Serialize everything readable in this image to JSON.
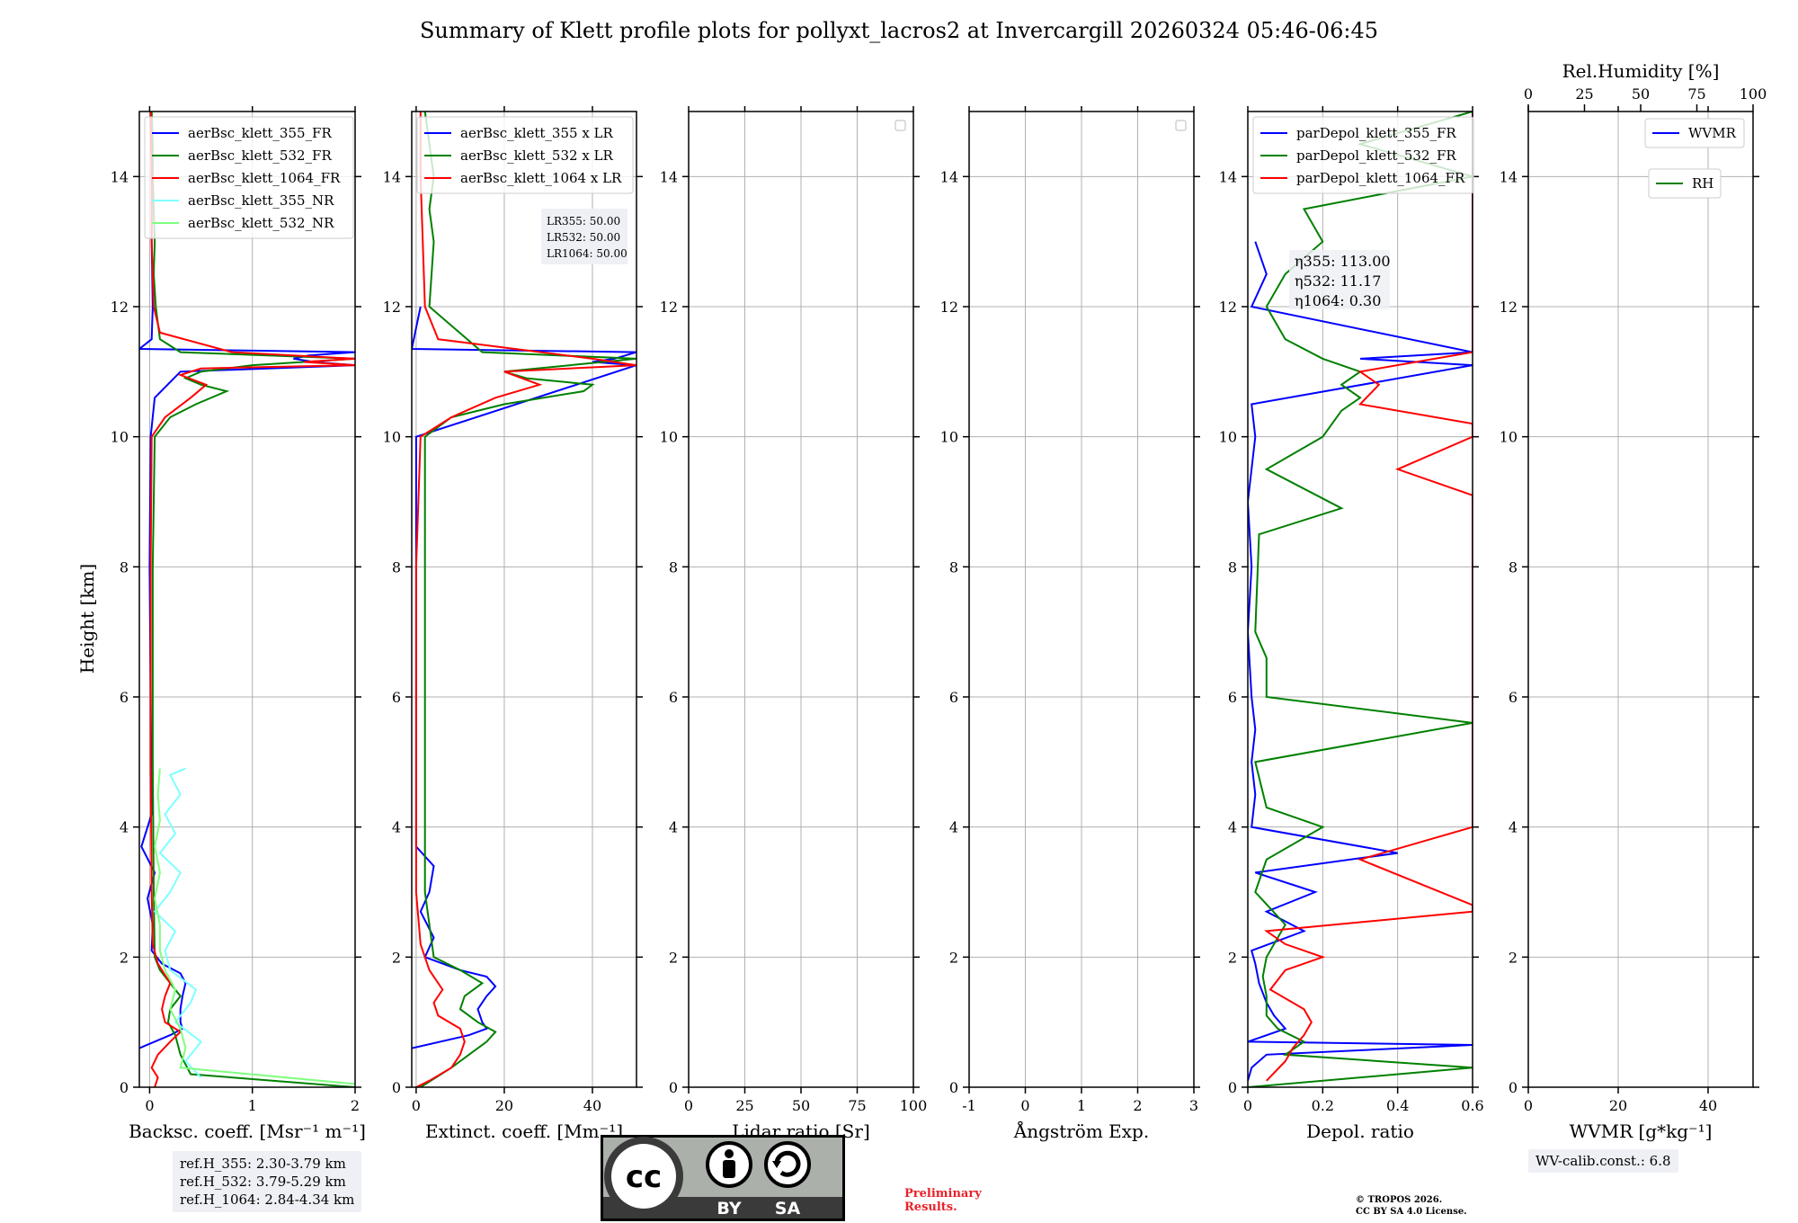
{
  "figure": {
    "title": "Summary of Klett profile plots for pollyxt_lacros2 at Invercargill 20260324 05:46-06:45",
    "ylabel": "Height [km]",
    "ref_heights": [
      "ref.H_355: 2.30-3.79 km",
      "ref.H_532: 3.79-5.29 km",
      "ref.H_1064: 2.84-4.34 km"
    ],
    "wv_calib": "WV-calib.const.: 6.8",
    "preliminary": [
      "Preliminary",
      "Results."
    ],
    "copyright": [
      "© TROPOS 2026.",
      "CC BY SA 4.0 License."
    ],
    "license_badge": {
      "cc": "cc",
      "by": "BY",
      "sa": "SA"
    },
    "colors": {
      "ch355": "#0000ff",
      "ch532": "#008000",
      "ch1064": "#ff0000",
      "nr355": "#7fffff",
      "nr532": "#7fff7f",
      "grid": "#b0b0b0"
    }
  },
  "chart_data": [
    {
      "type": "line",
      "id": "backscatter",
      "xlabel": "Backsc. coeff. [Msr⁻¹ m⁻¹]",
      "xlim": [
        -0.1,
        2.0
      ],
      "xticks": [
        0,
        1,
        2
      ],
      "ylim": [
        0,
        15
      ],
      "yticks": [
        0,
        2,
        4,
        6,
        8,
        10,
        12,
        14
      ],
      "legend_position": "top-left",
      "series": [
        {
          "name": "aerBsc_klett_355_FR",
          "color": "#0000ff",
          "h": [
            0.6,
            0.8,
            0.9,
            1.0,
            1.2,
            1.4,
            1.6,
            1.75,
            1.9,
            2.1,
            2.5,
            2.9,
            3.3,
            3.7,
            4.2,
            6,
            8,
            10,
            10.6,
            11.0,
            11.1,
            11.15,
            11.2,
            11.25,
            11.3,
            11.35,
            11.5,
            12,
            13,
            14,
            15
          ],
          "x": [
            -0.1,
            0.2,
            0.32,
            0.3,
            0.3,
            0.32,
            0.35,
            0.3,
            0.12,
            0.02,
            0.03,
            -0.02,
            0.05,
            -0.08,
            0.02,
            0.01,
            0.0,
            0.01,
            0.05,
            0.3,
            2.0,
            1.6,
            1.4,
            1.55,
            2.0,
            -0.1,
            0.02,
            0.03,
            0.02,
            0.02,
            0.01
          ]
        },
        {
          "name": "aerBsc_klett_532_FR",
          "color": "#008000",
          "h": [
            0.0,
            0.2,
            0.5,
            0.8,
            1.0,
            1.2,
            1.4,
            1.6,
            1.8,
            2.0,
            3,
            5,
            8,
            10,
            10.3,
            10.5,
            10.7,
            10.8,
            10.9,
            11.0,
            11.1,
            11.2,
            11.3,
            11.5,
            12,
            12.5,
            13,
            13.5,
            14,
            14.5,
            15
          ],
          "x": [
            2.0,
            0.4,
            0.3,
            0.25,
            0.18,
            0.2,
            0.3,
            0.2,
            0.1,
            0.05,
            0.04,
            0.03,
            0.03,
            0.05,
            0.2,
            0.45,
            0.75,
            0.5,
            0.35,
            0.5,
            1.0,
            2.0,
            0.3,
            0.1,
            0.06,
            0.04,
            0.05,
            0.04,
            0.03,
            0.03,
            0.02
          ]
        },
        {
          "name": "aerBsc_klett_1064_FR",
          "color": "#ff0000",
          "h": [
            0.0,
            0.15,
            0.3,
            0.5,
            0.7,
            0.85,
            1.0,
            1.2,
            1.4,
            1.6,
            1.9,
            2.2,
            3,
            5,
            8,
            10,
            10.3,
            10.6,
            10.8,
            10.95,
            11.05,
            11.1,
            11.15,
            11.2,
            11.3,
            11.6,
            12,
            13,
            14,
            15
          ],
          "x": [
            0.05,
            0.08,
            0.02,
            0.08,
            0.2,
            0.3,
            0.15,
            0.12,
            0.15,
            0.2,
            0.08,
            0.03,
            0.02,
            0.01,
            0.01,
            0.02,
            0.15,
            0.4,
            0.55,
            0.3,
            0.5,
            2.0,
            1.5,
            2.0,
            0.8,
            0.1,
            0.04,
            0.02,
            0.02,
            0.01
          ]
        },
        {
          "name": "aerBsc_klett_355_NR",
          "color": "#7fffff",
          "h": [
            0.15,
            0.4,
            0.7,
            1.0,
            1.3,
            1.5,
            1.8,
            2.1,
            2.4,
            2.7,
            3.0,
            3.3,
            3.6,
            3.9,
            4.2,
            4.5,
            4.8,
            4.9
          ],
          "x": [
            0.5,
            0.35,
            0.5,
            0.25,
            0.4,
            0.45,
            0.2,
            0.15,
            0.25,
            0.05,
            0.2,
            0.3,
            0.1,
            0.25,
            0.15,
            0.3,
            0.2,
            0.35
          ]
        },
        {
          "name": "aerBsc_klett_532_NR",
          "color": "#7fff7f",
          "h": [
            0.05,
            0.3,
            0.6,
            0.9,
            1.2,
            1.5,
            1.8,
            2.1,
            2.5,
            2.9,
            3.3,
            3.7,
            4.1,
            4.5,
            4.9
          ],
          "x": [
            2.0,
            0.3,
            0.35,
            0.3,
            0.2,
            0.25,
            0.15,
            0.1,
            0.1,
            0.05,
            0.1,
            0.05,
            0.1,
            0.08,
            0.1
          ]
        }
      ]
    },
    {
      "type": "line",
      "id": "extinction",
      "xlabel": "Extinct. coeff. [Mm⁻¹]",
      "xlim": [
        -1,
        50
      ],
      "xticks": [
        0,
        20,
        40
      ],
      "ylim": [
        0,
        15
      ],
      "yticks": [
        0,
        2,
        4,
        6,
        8,
        10,
        12,
        14
      ],
      "legend_position": "top-left",
      "lr_annotation": [
        "LR355: 50.00",
        "LR532: 50.00",
        "LR1064: 50.00"
      ],
      "series": [
        {
          "name": "aerBsc_klett_355 x LR",
          "color": "#0000ff",
          "h": [
            0.6,
            0.8,
            0.9,
            1.0,
            1.2,
            1.4,
            1.55,
            1.7,
            1.8,
            2.0,
            2.3,
            2.7,
            3.0,
            3.4,
            3.7,
            10,
            11.1,
            11.15,
            11.2,
            11.3,
            11.35,
            12
          ],
          "x": [
            -1,
            12,
            16,
            15,
            14,
            16,
            18,
            16,
            10,
            2,
            4,
            1,
            3,
            4,
            0,
            0,
            50,
            40,
            45,
            50,
            -1,
            1
          ]
        },
        {
          "name": "aerBsc_klett_532 x LR",
          "color": "#008000",
          "h": [
            0.0,
            0.3,
            0.5,
            0.7,
            0.85,
            1.0,
            1.2,
            1.4,
            1.6,
            1.8,
            2.0,
            3,
            5,
            8,
            10,
            10.3,
            10.5,
            10.7,
            10.8,
            10.9,
            11.0,
            11.2,
            11.3,
            12,
            13,
            13.5,
            14,
            14.5,
            15
          ],
          "x": [
            1,
            8,
            12,
            16,
            18,
            14,
            10,
            11,
            15,
            10,
            4,
            2,
            2,
            2,
            2,
            8,
            20,
            38,
            40,
            25,
            20,
            50,
            15,
            3,
            4,
            3,
            4,
            3,
            2
          ]
        },
        {
          "name": "aerBsc_klett_1064 x LR",
          "color": "#ff0000",
          "h": [
            0.0,
            0.1,
            0.3,
            0.5,
            0.7,
            0.9,
            1.1,
            1.3,
            1.5,
            1.8,
            2.2,
            3,
            8,
            10,
            10.3,
            10.6,
            10.8,
            11.0,
            11.1,
            11.2,
            11.5,
            12,
            14,
            15
          ],
          "x": [
            0,
            3,
            8,
            10,
            11,
            10,
            5,
            4,
            6,
            3,
            1,
            0,
            0,
            1,
            8,
            18,
            28,
            20,
            50,
            40,
            5,
            2,
            1,
            1
          ]
        }
      ]
    },
    {
      "type": "line",
      "id": "lidar_ratio",
      "xlabel": "Lidar ratio [Sr]",
      "xlim": [
        0,
        100
      ],
      "xticks": [
        0,
        25,
        50,
        75,
        100
      ],
      "ylim": [
        0,
        15
      ],
      "yticks": [
        0,
        2,
        4,
        6,
        8,
        10,
        12,
        14
      ],
      "series": []
    },
    {
      "type": "line",
      "id": "angstrom",
      "xlabel": "Ångström Exp.",
      "xlim": [
        -1,
        3
      ],
      "xticks": [
        -1,
        0,
        1,
        2,
        3
      ],
      "ylim": [
        0,
        15
      ],
      "yticks": [
        0,
        2,
        4,
        6,
        8,
        10,
        12,
        14
      ],
      "series": []
    },
    {
      "type": "line",
      "id": "depol",
      "xlabel": "Depol. ratio",
      "xlim": [
        0.0,
        0.6
      ],
      "xticks": [
        0.0,
        0.2,
        0.4,
        0.6
      ],
      "ylim": [
        0,
        15
      ],
      "yticks": [
        0,
        2,
        4,
        6,
        8,
        10,
        12,
        14
      ],
      "legend_position": "top-left",
      "eta_annotation": [
        "η355: 113.00",
        "η532: 11.17",
        "η1064: 0.30"
      ],
      "series": [
        {
          "name": "parDepol_klett_355_FR",
          "color": "#0000ff",
          "h": [
            0.1,
            0.3,
            0.5,
            0.65,
            0.7,
            0.9,
            1.1,
            1.3,
            1.6,
            1.9,
            2.1,
            2.4,
            2.7,
            3.0,
            3.3,
            3.6,
            4.0,
            4.5,
            5.0,
            5.5,
            6.0,
            7,
            8,
            9,
            10,
            10.5,
            11.1,
            11.2,
            11.3,
            12,
            12.5,
            13
          ],
          "x": [
            0.0,
            0.01,
            0.05,
            0.6,
            0.0,
            0.1,
            0.07,
            0.05,
            0.03,
            0.02,
            0.01,
            0.15,
            0.05,
            0.18,
            0.02,
            0.4,
            0.01,
            0.02,
            0.01,
            0.02,
            0.01,
            0.0,
            0.01,
            0.0,
            0.02,
            0.01,
            0.6,
            0.3,
            0.6,
            0.01,
            0.05,
            0.02
          ]
        },
        {
          "name": "parDepol_klett_532_FR",
          "color": "#008000",
          "h": [
            0.0,
            0.3,
            0.5,
            0.7,
            0.9,
            1.1,
            1.4,
            1.7,
            2.0,
            2.5,
            3,
            3.5,
            4.0,
            4.3,
            5,
            5.6,
            6.0,
            6.6,
            7,
            8.5,
            8.9,
            9.5,
            10,
            10.4,
            10.6,
            10.8,
            11.0,
            11.2,
            11.5,
            12,
            12.5,
            13,
            13.5,
            14,
            14.5,
            15
          ],
          "x": [
            0.0,
            0.6,
            0.1,
            0.15,
            0.08,
            0.05,
            0.05,
            0.04,
            0.05,
            0.1,
            0.02,
            0.05,
            0.2,
            0.05,
            0.02,
            0.6,
            0.05,
            0.05,
            0.02,
            0.03,
            0.25,
            0.05,
            0.2,
            0.25,
            0.3,
            0.25,
            0.3,
            0.2,
            0.1,
            0.05,
            0.1,
            0.2,
            0.15,
            0.6,
            0.3,
            0.6
          ]
        },
        {
          "name": "parDepol_klett_1064_FR",
          "color": "#ff0000",
          "h": [
            0.1,
            0.4,
            0.6,
            0.8,
            1.0,
            1.2,
            1.5,
            1.8,
            2.0,
            2.2,
            2.4,
            2.7,
            2.8,
            3.5,
            4.0,
            4.4,
            5.2,
            6.0,
            6.5,
            7.0,
            7.5,
            7.9,
            8.5,
            8.9,
            9.1,
            9.5,
            10.0,
            10.2,
            10.5,
            10.8,
            11.0,
            11.3,
            11.8,
            12.0,
            12.4,
            12.8,
            13.2,
            13.6,
            14.0,
            14.6,
            15
          ],
          "x": [
            0.05,
            0.1,
            0.12,
            0.15,
            0.17,
            0.15,
            0.06,
            0.1,
            0.2,
            0.1,
            0.05,
            0.6,
            0.6,
            0.3,
            0.6,
            0.6,
            0.6,
            0.6,
            0.6,
            0.6,
            0.6,
            0.6,
            0.6,
            0.6,
            0.6,
            0.4,
            0.6,
            0.6,
            0.3,
            0.35,
            0.3,
            0.6,
            0.6,
            0.6,
            0.6,
            0.6,
            0.6,
            0.6,
            0.6,
            0.6,
            0.6
          ]
        }
      ]
    },
    {
      "type": "line",
      "id": "wv",
      "xlabel": "WVMR [g*kg⁻¹]",
      "xlim": [
        0,
        50
      ],
      "xticks": [
        0,
        20,
        40
      ],
      "top_xlabel": "Rel.Humidity [%]",
      "top_xlim": [
        0,
        100
      ],
      "top_xticks": [
        0,
        25,
        50,
        75,
        100
      ],
      "ylim": [
        0,
        15
      ],
      "yticks": [
        0,
        2,
        4,
        6,
        8,
        10,
        12,
        14
      ],
      "legend": [
        {
          "name": "WVMR",
          "color": "#0000ff"
        },
        {
          "name": "RH",
          "color": "#008000"
        }
      ],
      "series": []
    }
  ]
}
